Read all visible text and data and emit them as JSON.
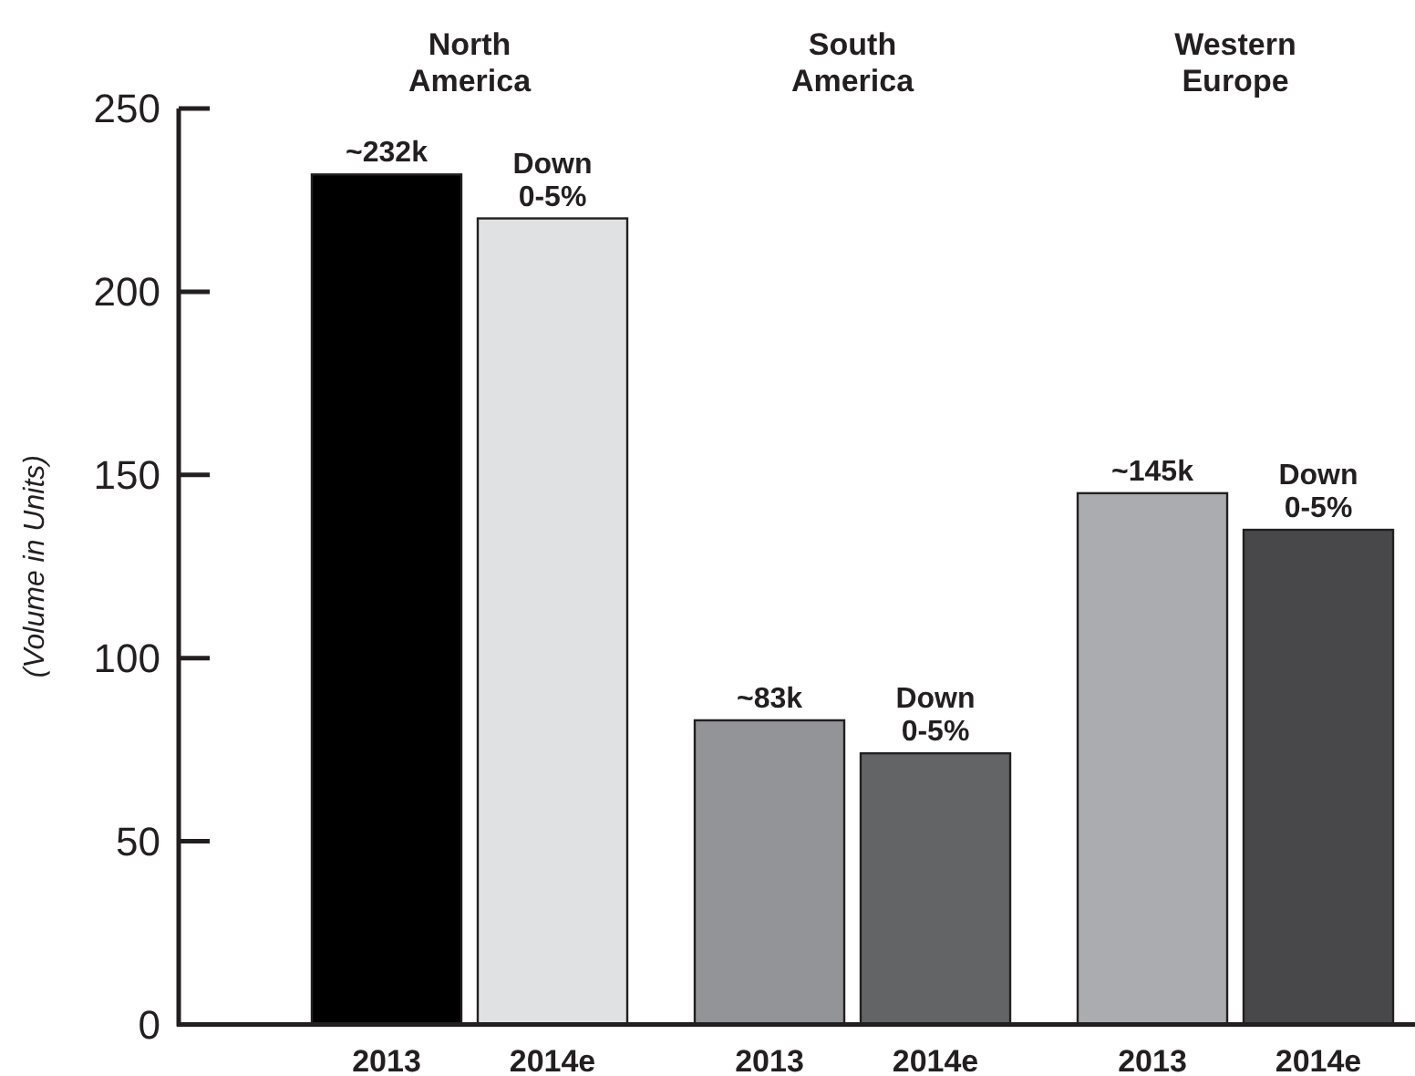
{
  "chart_data": {
    "type": "bar",
    "ylabel": "(Volume in Units)",
    "categories": [
      "2013",
      "2014e",
      "2013",
      "2014e",
      "2013",
      "2014e"
    ],
    "values": [
      232,
      220,
      83,
      74,
      145,
      135
    ],
    "colors": [
      "#000000",
      "#e0e1e3",
      "#939497",
      "#636466",
      "#abacaf",
      "#48484a"
    ],
    "value_labels": [
      "~232k",
      null,
      "~83k",
      null,
      "~145k",
      null
    ],
    "annotations": [
      "North America",
      "South America",
      "Western Europe",
      {
        "text": "Down 0-5%",
        "y": 220
      },
      {
        "text": "Down 0-5%",
        "y": 74
      },
      {
        "text": "Down 0-5%",
        "y": 135
      }
    ],
    "ylim": [
      0,
      250
    ],
    "yticks": [
      0,
      50,
      100,
      150,
      200,
      250
    ],
    "grid": false
  }
}
